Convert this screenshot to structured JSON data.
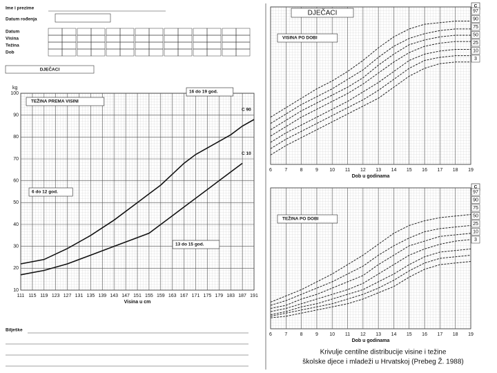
{
  "form": {
    "fields": [
      "Ime i prezime",
      "Datum rođenja",
      "Datum",
      "Visina",
      "Težina",
      "Dob"
    ],
    "section_label": "DJEČACI",
    "notes_label": "Bilješke"
  },
  "caption": [
    "Krivulje centilne distribucije visine i težine",
    "školske djece i mladeži u Hrvatskoj (Prebeg Ž. 1988)"
  ],
  "chart_data": [
    {
      "type": "line",
      "title": "TEŽINA PREMA VISINI",
      "y_label": "kg",
      "x_label": "Visina u cm",
      "annotations": [
        "16 do 19 god.",
        "6 do 12 god.",
        "13 do 15 god."
      ],
      "x": [
        111,
        119,
        127,
        135,
        143,
        151,
        155,
        159,
        163,
        167,
        171,
        175,
        179,
        183,
        187,
        191
      ],
      "xlim": [
        111,
        191
      ],
      "xticks": [
        111,
        115,
        119,
        123,
        127,
        131,
        135,
        139,
        143,
        147,
        151,
        155,
        159,
        163,
        167,
        171,
        175,
        179,
        183,
        187,
        191
      ],
      "ylim": [
        10,
        100
      ],
      "yticks": [
        10,
        20,
        30,
        40,
        50,
        60,
        70,
        80,
        90,
        100
      ],
      "grid": true,
      "series": [
        {
          "name": "C 90",
          "color": "#111111",
          "values": [
            22,
            24,
            29,
            35,
            42,
            50,
            54,
            58,
            63,
            68,
            72,
            75,
            78,
            81,
            85,
            88
          ]
        },
        {
          "name": "C 10",
          "color": "#111111",
          "values": [
            17,
            19,
            22,
            26,
            30,
            34,
            36,
            40,
            44,
            48,
            52,
            56,
            60,
            64,
            68,
            null
          ]
        }
      ]
    },
    {
      "type": "line",
      "group": "DJEČACI",
      "title": "VISINA PO DOBI",
      "x_label": "Dob u godinama",
      "legend_title": "C",
      "x": [
        6,
        7,
        8,
        9,
        10,
        11,
        12,
        13,
        14,
        15,
        16,
        17,
        18,
        19
      ],
      "xlim": [
        6,
        19
      ],
      "xticks": [
        6,
        7,
        8,
        9,
        10,
        11,
        12,
        13,
        14,
        15,
        16,
        17,
        18,
        19
      ],
      "ylim": [
        100,
        200
      ],
      "grid": true,
      "series": [
        {
          "name": "97",
          "color": "#222222",
          "values": [
            130,
            136,
            142,
            148,
            153,
            159,
            166,
            174,
            181,
            186,
            189,
            190,
            191,
            191
          ]
        },
        {
          "name": "90",
          "color": "#222222",
          "values": [
            126,
            132,
            138,
            143,
            148,
            154,
            160,
            168,
            175,
            180,
            183,
            185,
            186,
            186
          ]
        },
        {
          "name": "75",
          "color": "#222222",
          "values": [
            122,
            128,
            134,
            139,
            144,
            149,
            155,
            163,
            170,
            176,
            179,
            181,
            182,
            182
          ]
        },
        {
          "name": "50",
          "color": "#222222",
          "values": [
            118,
            124,
            130,
            135,
            140,
            145,
            151,
            158,
            165,
            171,
            175,
            177,
            178,
            178
          ]
        },
        {
          "name": "25",
          "color": "#222222",
          "values": [
            114,
            120,
            125,
            130,
            135,
            140,
            146,
            152,
            159,
            166,
            170,
            172,
            173,
            173
          ]
        },
        {
          "name": "10",
          "color": "#222222",
          "values": [
            110,
            116,
            121,
            126,
            131,
            136,
            141,
            147,
            154,
            161,
            166,
            168,
            169,
            169
          ]
        },
        {
          "name": "3",
          "color": "#222222",
          "values": [
            106,
            112,
            117,
            122,
            127,
            132,
            137,
            142,
            149,
            156,
            161,
            164,
            165,
            165
          ]
        }
      ]
    },
    {
      "type": "line",
      "title": "TEŽINA PO DOBI",
      "x_label": "Dob u godinama",
      "legend_title": "C",
      "x": [
        6,
        7,
        8,
        9,
        10,
        11,
        12,
        13,
        14,
        15,
        16,
        17,
        18,
        19
      ],
      "xlim": [
        6,
        19
      ],
      "xticks": [
        6,
        7,
        8,
        9,
        10,
        11,
        12,
        13,
        14,
        15,
        16,
        17,
        18,
        19
      ],
      "ylim": [
        10,
        100
      ],
      "grid": true,
      "series": [
        {
          "name": "97",
          "color": "#222222",
          "values": [
            27,
            31,
            35,
            40,
            45,
            51,
            57,
            64,
            71,
            76,
            79,
            81,
            82,
            83
          ]
        },
        {
          "name": "90",
          "color": "#222222",
          "values": [
            25,
            28,
            32,
            36,
            40,
            45,
            50,
            57,
            63,
            68,
            72,
            74,
            75,
            76
          ]
        },
        {
          "name": "75",
          "color": "#222222",
          "values": [
            23,
            25,
            29,
            32,
            36,
            40,
            44,
            51,
            57,
            63,
            66,
            69,
            70,
            71
          ]
        },
        {
          "name": "50",
          "color": "#222222",
          "values": [
            21,
            23,
            26,
            29,
            32,
            35,
            39,
            45,
            51,
            57,
            61,
            64,
            66,
            67
          ]
        },
        {
          "name": "25",
          "color": "#222222",
          "values": [
            19,
            21,
            24,
            26,
            29,
            32,
            35,
            40,
            45,
            51,
            56,
            59,
            60,
            61
          ]
        },
        {
          "name": "10",
          "color": "#222222",
          "values": [
            18,
            20,
            22,
            24,
            26,
            29,
            32,
            36,
            41,
            47,
            52,
            55,
            56,
            57
          ]
        },
        {
          "name": "3",
          "color": "#222222",
          "values": [
            17,
            18,
            20,
            22,
            24,
            26,
            29,
            33,
            37,
            43,
            48,
            51,
            52,
            53
          ]
        }
      ]
    }
  ]
}
